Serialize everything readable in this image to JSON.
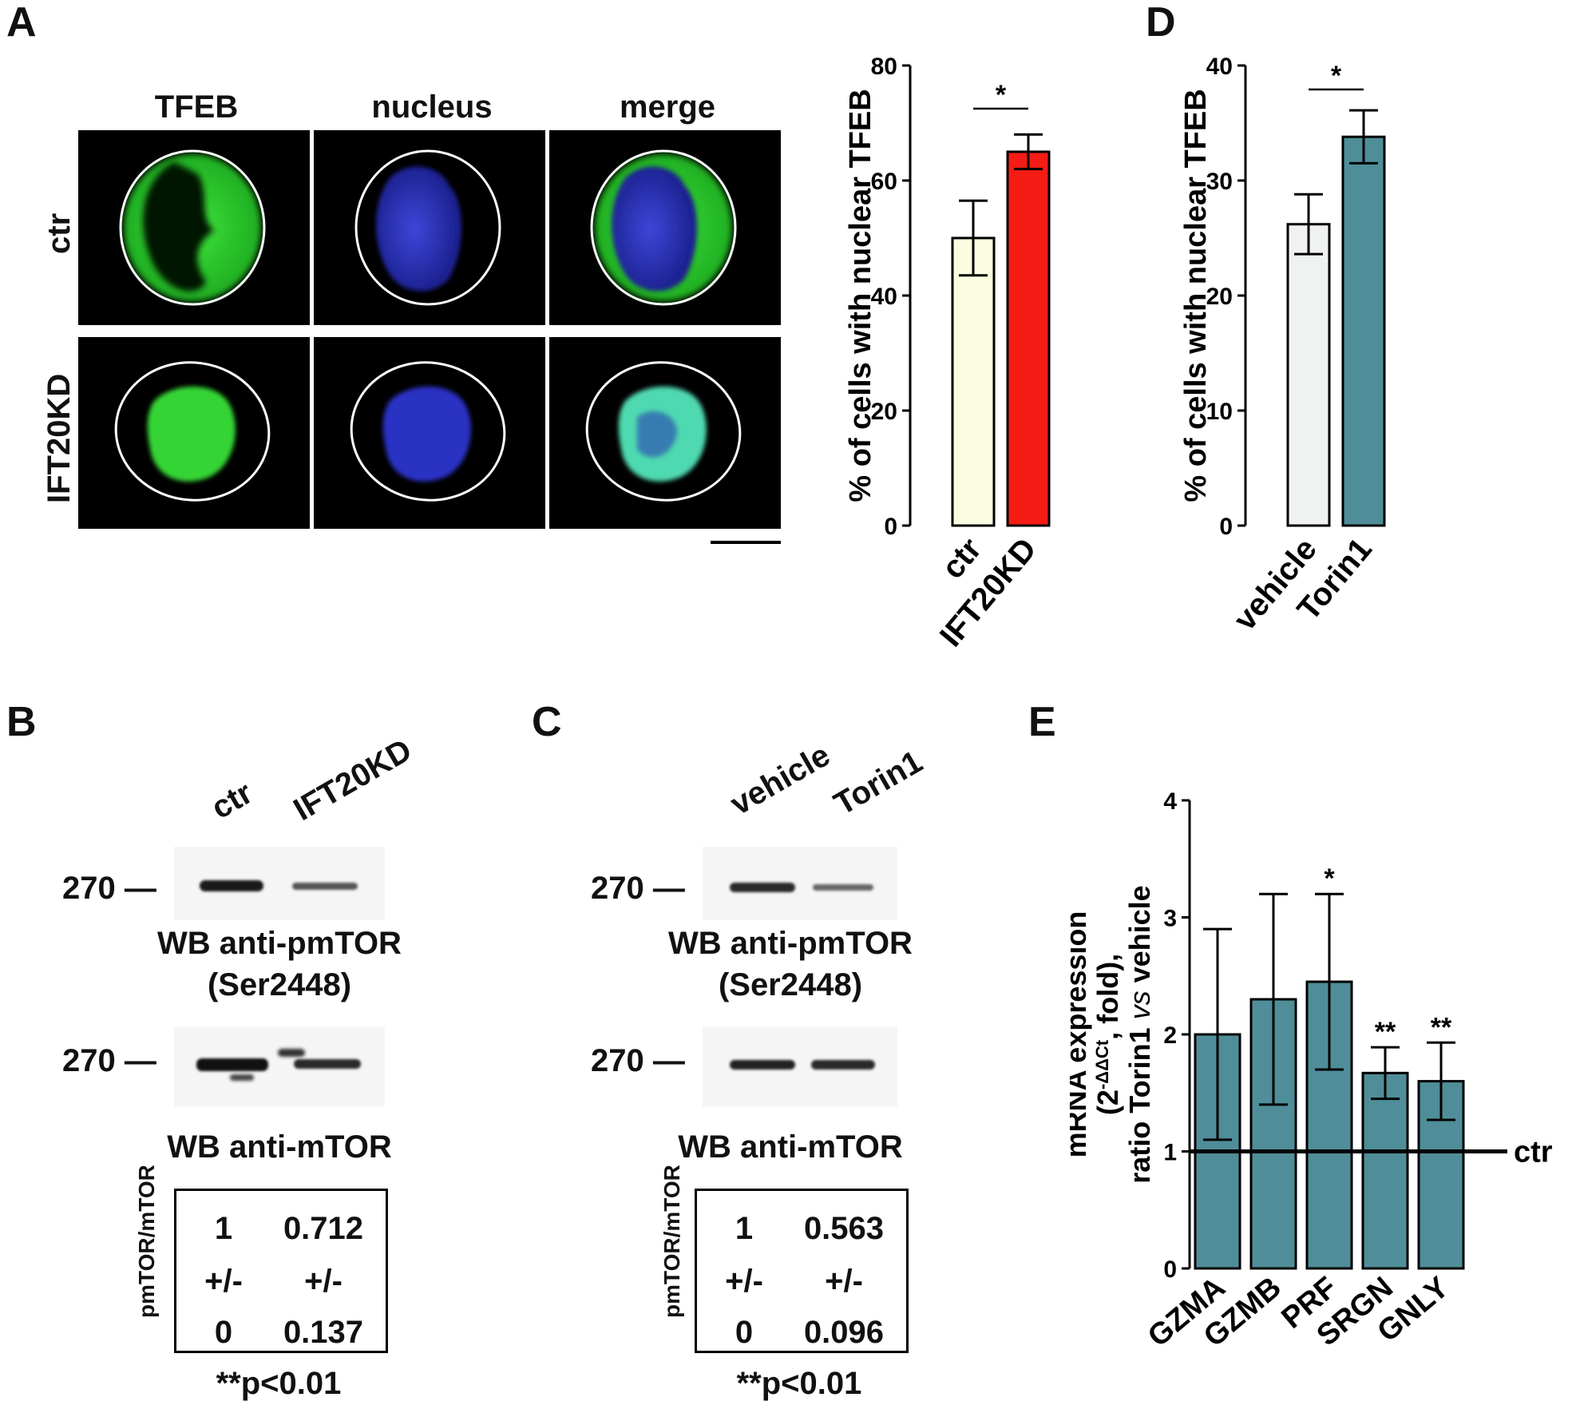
{
  "panels": {
    "A": "A",
    "B": "B",
    "C": "C",
    "D": "D",
    "E": "E"
  },
  "panelA": {
    "columns": [
      "TFEB",
      "nucleus",
      "merge"
    ],
    "rows": [
      "ctr",
      "IFT20KD"
    ]
  },
  "panelB": {
    "lanes": [
      "ctr",
      "IFT20KD"
    ],
    "mw1": "270 —",
    "mw2": "270 —",
    "blot1_label": "WB anti-pmTOR",
    "blot1_sub": "(Ser2448)",
    "blot2_label": "WB anti-mTOR",
    "quant_label": "pmTOR/mTOR",
    "quant": {
      "mean": [
        "1",
        "0.712"
      ],
      "pm": [
        "+/-",
        "+/-"
      ],
      "sd": [
        "0",
        "0.137"
      ]
    },
    "pvalue": "**p<0.01"
  },
  "panelC": {
    "lanes": [
      "vehicle",
      "Torin1"
    ],
    "mw1": "270 —",
    "mw2": "270 —",
    "blot1_label": "WB anti-pmTOR",
    "blot1_sub": "(Ser2448)",
    "blot2_label": "WB anti-mTOR",
    "quant_label": "pmTOR/mTOR",
    "quant": {
      "mean": [
        "1",
        "0.563"
      ],
      "pm": [
        "+/-",
        "+/-"
      ],
      "sd": [
        "0",
        "0.096"
      ]
    },
    "pvalue": "**p<0.01"
  },
  "chart_data": [
    {
      "id": "A-right",
      "type": "bar",
      "categories": [
        "ctr",
        "IFT20KD"
      ],
      "values": [
        50,
        65
      ],
      "errors": [
        6.5,
        3
      ],
      "colors": [
        "#fbfde0",
        "#f41c14"
      ],
      "ylabel": "% of cells with nuclear TFEB",
      "ylim": [
        0,
        80
      ],
      "yticks": [
        0,
        20,
        40,
        60,
        80
      ],
      "significance": "*"
    },
    {
      "id": "D",
      "type": "bar",
      "categories": [
        "vehicle",
        "Torin1"
      ],
      "values": [
        26.2,
        33.8
      ],
      "errors": [
        2.6,
        2.3
      ],
      "colors": [
        "#f0f2f2",
        "#4f8e98"
      ],
      "ylabel": "% of cells with nuclear TFEB",
      "ylim": [
        0,
        40
      ],
      "yticks": [
        0,
        10,
        20,
        30,
        40
      ],
      "significance": "*"
    },
    {
      "id": "E",
      "type": "bar",
      "categories": [
        "GZMA",
        "GZMB",
        "PRF",
        "SRGN",
        "GNLY"
      ],
      "values": [
        2.0,
        2.3,
        2.45,
        1.67,
        1.6
      ],
      "errors": [
        0.9,
        0.9,
        0.75,
        0.22,
        0.33
      ],
      "colors": [
        "#4f8e98"
      ],
      "significance": [
        "",
        "",
        "*",
        "**",
        "**"
      ],
      "ylabel_lines": [
        "mRNA expression",
        "(2",
        ", fold),",
        "ratio Torin1 ",
        "vs",
        " vehicle"
      ],
      "ylabel_super": "-ΔΔCt",
      "ylim": [
        0,
        4
      ],
      "yticks": [
        0,
        1,
        2,
        3,
        4
      ],
      "reference_line": 1,
      "reference_label": "ctr"
    }
  ]
}
